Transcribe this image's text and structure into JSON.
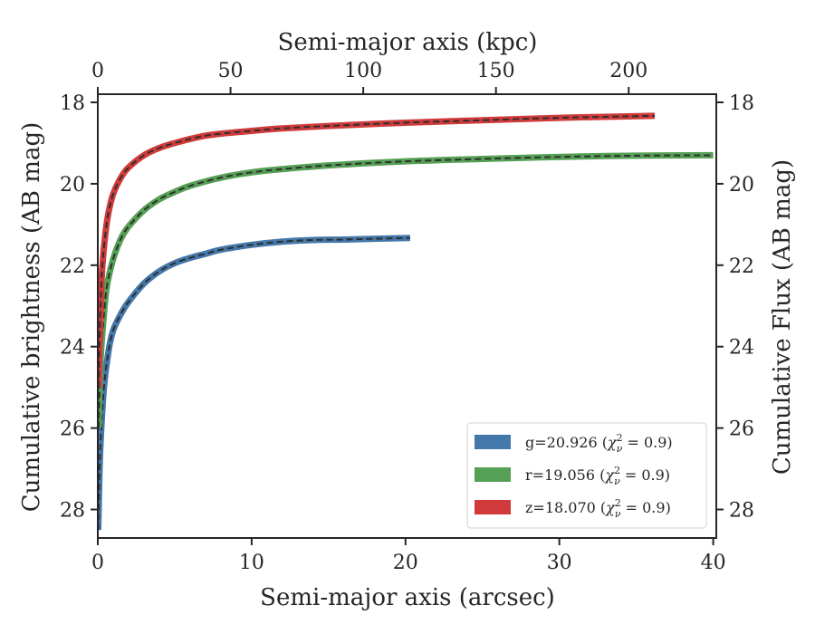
{
  "chart_data": {
    "type": "line",
    "xlabel": "Semi-major axis (arcsec)",
    "ylabel": "Cumulative brightness (AB mag)",
    "top_xlabel": "Semi-major axis (kpc)",
    "right_ylabel": "Cumulative Flux (AB mag)",
    "xlim": [
      0,
      40.2
    ],
    "ylim": [
      28.7,
      17.8
    ],
    "top_xlim": [
      0,
      233
    ],
    "x_ticks": [
      0,
      10,
      20,
      30,
      40
    ],
    "x_tick_labels": [
      "0",
      "10",
      "20",
      "30",
      "40"
    ],
    "top_x_ticks": [
      0,
      50,
      100,
      150,
      200
    ],
    "top_x_tick_labels": [
      "0",
      "50",
      "100",
      "150",
      "200"
    ],
    "y_ticks": [
      18,
      20,
      22,
      24,
      26,
      28
    ],
    "y_tick_labels": [
      "18",
      "20",
      "22",
      "24",
      "26",
      "28"
    ],
    "right_y_ticks": [
      18,
      20,
      22,
      24,
      26,
      28
    ],
    "right_y_tick_labels": [
      "18",
      "20",
      "22",
      "24",
      "26",
      "28"
    ],
    "y_inverted": true,
    "grid": false,
    "legend_position": "lower-right",
    "model_line_style": "dashed",
    "series": [
      {
        "name": "g=20.926 (χ²_ν = 0.9)",
        "legend_prefix": "g=20.926 (",
        "legend_chi": "χ",
        "legend_sub": "ν",
        "legend_sup": "2",
        "legend_suffix": " = 0.9)",
        "color": "#4477aa",
        "x": [
          0.03,
          0.1,
          0.2,
          0.4,
          0.7,
          1.0,
          1.5,
          2.0,
          3.0,
          4.0,
          5.0,
          6.0,
          7.0,
          8.0,
          10.0,
          12.0,
          14.0,
          16.0,
          18.0,
          20.3
        ],
        "y": [
          28.5,
          27.2,
          26.2,
          25.0,
          24.1,
          23.6,
          23.2,
          22.9,
          22.45,
          22.15,
          21.95,
          21.82,
          21.72,
          21.62,
          21.5,
          21.42,
          21.38,
          21.37,
          21.35,
          21.33
        ]
      },
      {
        "name": "r=19.056 (χ²_ν = 0.9)",
        "legend_prefix": "r=19.056 (",
        "legend_chi": "χ",
        "legend_sub": "ν",
        "legend_sup": "2",
        "legend_suffix": " = 0.9)",
        "color": "#55a055",
        "x": [
          0.05,
          0.1,
          0.2,
          0.4,
          0.6,
          1.0,
          1.5,
          2.0,
          3.0,
          4.0,
          5.0,
          6.0,
          8.0,
          10.0,
          12.0,
          15.0,
          20.0,
          25.0,
          30.0,
          35.0,
          40.0
        ],
        "y": [
          26.0,
          25.2,
          24.2,
          23.2,
          22.5,
          21.85,
          21.35,
          21.05,
          20.65,
          20.38,
          20.2,
          20.05,
          19.85,
          19.72,
          19.64,
          19.55,
          19.45,
          19.39,
          19.34,
          19.31,
          19.3
        ]
      },
      {
        "name": "z=18.070 (χ²_ν = 0.9)",
        "legend_prefix": "z=18.070 (",
        "legend_chi": "χ",
        "legend_sub": "ν",
        "legend_sup": "2",
        "legend_suffix": " = 0.9)",
        "color": "#d03a3a",
        "x": [
          0.05,
          0.1,
          0.2,
          0.3,
          0.5,
          0.7,
          1.0,
          1.5,
          2.0,
          3.0,
          4.0,
          5.0,
          6.0,
          7.0,
          8.0,
          10.0,
          12.0,
          15.0,
          20.0,
          25.0,
          30.0,
          36.2
        ],
        "y": [
          25.0,
          24.0,
          22.8,
          22.0,
          21.2,
          20.7,
          20.25,
          19.85,
          19.6,
          19.3,
          19.12,
          19.0,
          18.9,
          18.82,
          18.77,
          18.7,
          18.64,
          18.58,
          18.5,
          18.44,
          18.38,
          18.33
        ]
      }
    ]
  }
}
